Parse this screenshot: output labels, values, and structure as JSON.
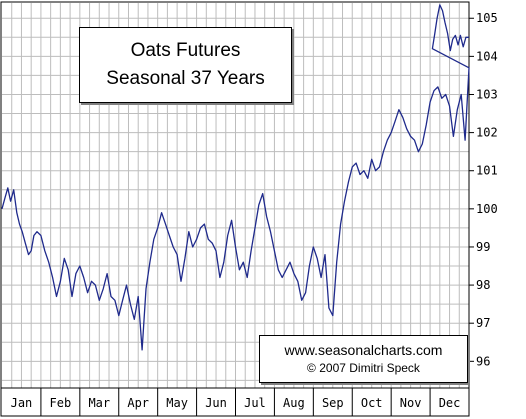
{
  "colors": {
    "line": "#1f2a8c",
    "grid": "#bdbdbd",
    "frame": "#000000",
    "background": "#ffffff"
  },
  "title_box": {
    "line1": "Oats Futures",
    "line2": "Seasonal 37 Years"
  },
  "credit_box": {
    "site": "www.seasonalcharts.com",
    "author": "© 2007   Dimitri Speck"
  },
  "chart_data": {
    "type": "line",
    "title": "Oats Futures Seasonal 37 Years",
    "xlabel": "",
    "ylabel": "",
    "months": [
      "Jan",
      "Feb",
      "Mar",
      "Apr",
      "May",
      "Jun",
      "Jul",
      "Aug",
      "Sep",
      "Oct",
      "Nov",
      "Dec"
    ],
    "yticks": [
      96,
      97,
      98,
      99,
      100,
      101,
      102,
      103,
      104,
      105
    ],
    "ylim": [
      95.3,
      105.4
    ],
    "xlim": [
      0,
      12
    ],
    "grid": true,
    "y_axis_position": "right",
    "series": [
      {
        "x": [
          0.0,
          0.08,
          0.15,
          0.22,
          0.3,
          0.38,
          0.45,
          0.52,
          0.6,
          0.68,
          0.75,
          0.82,
          0.9,
          1.0,
          1.1,
          1.2,
          1.3,
          1.4,
          1.5,
          1.6,
          1.7,
          1.8,
          1.9,
          2.0,
          2.1,
          2.2,
          2.3,
          2.4,
          2.5,
          2.6,
          2.7,
          2.8,
          2.9,
          3.0,
          3.1,
          3.2,
          3.3,
          3.4,
          3.5,
          3.6,
          3.7,
          3.8,
          3.9,
          4.0,
          4.1,
          4.2,
          4.3,
          4.4,
          4.5,
          4.6,
          4.7,
          4.8,
          4.9,
          5.0,
          5.1,
          5.2,
          5.3,
          5.4,
          5.5,
          5.6,
          5.7,
          5.8,
          5.9,
          6.0,
          6.1,
          6.2,
          6.3,
          6.4,
          6.5,
          6.6,
          6.7,
          6.8,
          6.9,
          7.0,
          7.1,
          7.2,
          7.3,
          7.4,
          7.5,
          7.6,
          7.7,
          7.8,
          7.9,
          8.0,
          8.1,
          8.2,
          8.3,
          8.4,
          8.5,
          8.6,
          8.7,
          8.8,
          8.9,
          9.0,
          9.1,
          9.2,
          9.3,
          9.4,
          9.5,
          9.6,
          9.7,
          9.8,
          9.9,
          10.0,
          10.1,
          10.2,
          10.3,
          10.4,
          10.5,
          10.6,
          10.7,
          10.8,
          10.9,
          11.0,
          11.1,
          11.2,
          11.3,
          11.4,
          11.5,
          11.6,
          11.7,
          11.8,
          11.9,
          12.0
        ],
        "values": [
          100.0,
          100.3,
          100.55,
          100.2,
          100.5,
          99.9,
          99.6,
          99.4,
          99.1,
          98.8,
          98.9,
          99.3,
          99.4,
          99.3,
          98.9,
          98.6,
          98.2,
          97.7,
          98.1,
          98.7,
          98.4,
          97.7,
          98.3,
          98.5,
          98.2,
          97.8,
          98.1,
          98.0,
          97.6,
          97.9,
          98.3,
          97.7,
          97.6,
          97.2,
          97.6,
          98.0,
          97.5,
          97.1,
          97.7,
          96.3,
          97.9,
          98.6,
          99.2,
          99.5,
          99.9,
          99.6,
          99.3,
          99.0,
          98.8,
          98.1,
          98.7,
          99.4,
          99.0,
          99.2,
          99.5,
          99.6,
          99.2,
          99.1,
          98.9,
          98.2,
          98.6,
          99.3,
          99.7,
          99.0,
          98.4,
          98.6,
          98.2,
          98.9,
          99.5,
          100.1,
          100.4,
          99.8,
          99.4,
          98.9,
          98.4,
          98.2,
          98.4,
          98.6,
          98.3,
          98.1,
          97.6,
          97.8,
          98.5,
          99.0,
          98.7,
          98.2,
          98.8,
          97.4,
          97.2,
          98.6,
          99.6,
          100.2,
          100.7,
          101.1,
          101.2,
          100.9,
          101.0,
          100.8,
          101.3,
          101.0,
          101.1,
          101.5,
          101.8,
          102.0,
          102.3,
          102.6,
          102.4,
          102.1,
          101.9,
          101.8,
          101.5,
          101.7,
          102.2,
          102.8,
          103.1,
          103.2,
          102.9,
          103.0,
          102.7,
          101.9,
          102.6,
          103.0,
          101.8,
          103.7
        ]
      }
    ],
    "tail_x": [
      11.06,
      11.12,
      11.18,
      11.25,
      11.32,
      11.38,
      11.45,
      11.52,
      11.58,
      11.65,
      11.72,
      11.78,
      11.85,
      11.92,
      12.0
    ],
    "tail_values": [
      104.2,
      104.6,
      105.0,
      105.35,
      105.2,
      104.9,
      104.6,
      104.15,
      104.45,
      104.55,
      104.3,
      104.55,
      104.25,
      104.5,
      104.5
    ]
  }
}
